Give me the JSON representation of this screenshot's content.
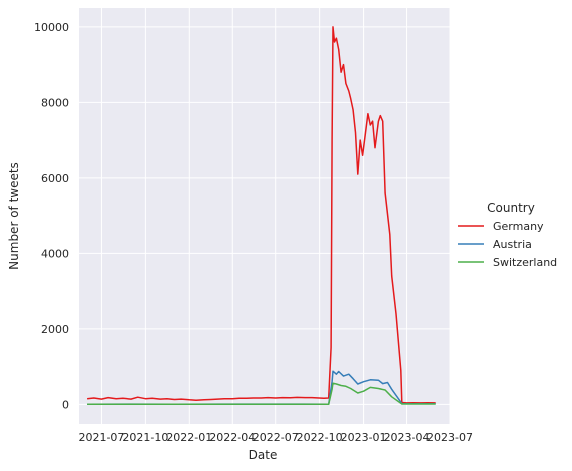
{
  "chart_data": {
    "type": "line",
    "xlabel": "Date",
    "ylabel": "Number of tweets",
    "x_ticks": [
      "2021-07",
      "2021-10",
      "2022-01",
      "2022-04",
      "2022-07",
      "2022-10",
      "2023-01",
      "2023-04",
      "2023-07"
    ],
    "y_ticks": [
      0,
      2000,
      4000,
      6000,
      8000,
      10000
    ],
    "xlim": [
      "2021-05-15",
      "2023-07-01"
    ],
    "ylim": [
      -520,
      10500
    ],
    "grid": true,
    "background": "#eaeaf2",
    "legend": {
      "title": "Country",
      "placement": "right"
    },
    "series": [
      {
        "name": "Germany",
        "color": "#e41a1c",
        "points": [
          [
            "2021-06-01",
            150
          ],
          [
            "2021-06-15",
            170
          ],
          [
            "2021-07-01",
            140
          ],
          [
            "2021-07-15",
            180
          ],
          [
            "2021-08-01",
            150
          ],
          [
            "2021-08-15",
            160
          ],
          [
            "2021-09-01",
            140
          ],
          [
            "2021-09-15",
            190
          ],
          [
            "2021-10-01",
            150
          ],
          [
            "2021-10-15",
            160
          ],
          [
            "2021-11-01",
            140
          ],
          [
            "2021-11-15",
            150
          ],
          [
            "2021-12-01",
            130
          ],
          [
            "2021-12-15",
            140
          ],
          [
            "2022-01-01",
            120
          ],
          [
            "2022-01-15",
            110
          ],
          [
            "2022-02-01",
            120
          ],
          [
            "2022-02-15",
            130
          ],
          [
            "2022-03-01",
            140
          ],
          [
            "2022-03-15",
            150
          ],
          [
            "2022-04-01",
            150
          ],
          [
            "2022-04-15",
            160
          ],
          [
            "2022-05-01",
            160
          ],
          [
            "2022-05-15",
            170
          ],
          [
            "2022-06-01",
            170
          ],
          [
            "2022-06-15",
            180
          ],
          [
            "2022-07-01",
            170
          ],
          [
            "2022-07-15",
            180
          ],
          [
            "2022-08-01",
            175
          ],
          [
            "2022-08-15",
            185
          ],
          [
            "2022-09-01",
            180
          ],
          [
            "2022-09-15",
            180
          ],
          [
            "2022-10-10",
            160
          ],
          [
            "2022-10-20",
            170
          ],
          [
            "2022-10-25",
            1500
          ],
          [
            "2022-10-27",
            7000
          ],
          [
            "2022-10-29",
            10000
          ],
          [
            "2022-11-01",
            9600
          ],
          [
            "2022-11-05",
            9700
          ],
          [
            "2022-11-10",
            9400
          ],
          [
            "2022-11-15",
            8800
          ],
          [
            "2022-11-20",
            9000
          ],
          [
            "2022-11-25",
            8500
          ],
          [
            "2022-12-01",
            8300
          ],
          [
            "2022-12-05",
            8100
          ],
          [
            "2022-12-10",
            7800
          ],
          [
            "2022-12-15",
            7200
          ],
          [
            "2022-12-20",
            6100
          ],
          [
            "2022-12-25",
            7000
          ],
          [
            "2022-12-30",
            6600
          ],
          [
            "2023-01-05",
            7200
          ],
          [
            "2023-01-10",
            7700
          ],
          [
            "2023-01-15",
            7400
          ],
          [
            "2023-01-20",
            7500
          ],
          [
            "2023-01-25",
            6800
          ],
          [
            "2023-02-01",
            7500
          ],
          [
            "2023-02-05",
            7650
          ],
          [
            "2023-02-10",
            7500
          ],
          [
            "2023-02-15",
            5600
          ],
          [
            "2023-02-25",
            4500
          ],
          [
            "2023-03-01",
            3400
          ],
          [
            "2023-03-10",
            2400
          ],
          [
            "2023-03-20",
            900
          ],
          [
            "2023-03-22",
            50
          ],
          [
            "2023-04-01",
            40
          ],
          [
            "2023-04-15",
            45
          ],
          [
            "2023-05-01",
            40
          ],
          [
            "2023-05-15",
            45
          ],
          [
            "2023-06-01",
            40
          ]
        ]
      },
      {
        "name": "Austria",
        "color": "#377eb8",
        "points": [
          [
            "2021-06-01",
            5
          ],
          [
            "2021-09-01",
            8
          ],
          [
            "2021-12-01",
            5
          ],
          [
            "2022-03-01",
            6
          ],
          [
            "2022-06-01",
            7
          ],
          [
            "2022-09-01",
            6
          ],
          [
            "2022-10-20",
            5
          ],
          [
            "2022-10-27",
            600
          ],
          [
            "2022-10-29",
            880
          ],
          [
            "2022-11-05",
            800
          ],
          [
            "2022-11-10",
            870
          ],
          [
            "2022-11-20",
            750
          ],
          [
            "2022-12-01",
            800
          ],
          [
            "2022-12-10",
            680
          ],
          [
            "2022-12-20",
            540
          ],
          [
            "2023-01-01",
            600
          ],
          [
            "2023-01-15",
            650
          ],
          [
            "2023-02-01",
            640
          ],
          [
            "2023-02-10",
            550
          ],
          [
            "2023-02-20",
            580
          ],
          [
            "2023-03-01",
            400
          ],
          [
            "2023-03-22",
            20
          ],
          [
            "2023-04-15",
            15
          ],
          [
            "2023-06-01",
            15
          ]
        ]
      },
      {
        "name": "Switzerland",
        "color": "#4daf4a",
        "points": [
          [
            "2021-06-01",
            3
          ],
          [
            "2021-09-01",
            4
          ],
          [
            "2021-12-01",
            3
          ],
          [
            "2022-03-01",
            4
          ],
          [
            "2022-06-01",
            4
          ],
          [
            "2022-09-01",
            3
          ],
          [
            "2022-10-20",
            3
          ],
          [
            "2022-10-27",
            400
          ],
          [
            "2022-10-29",
            560
          ],
          [
            "2022-11-05",
            540
          ],
          [
            "2022-11-15",
            500
          ],
          [
            "2022-11-25",
            480
          ],
          [
            "2022-12-05",
            420
          ],
          [
            "2022-12-20",
            300
          ],
          [
            "2023-01-01",
            350
          ],
          [
            "2023-01-15",
            450
          ],
          [
            "2023-02-01",
            420
          ],
          [
            "2023-02-15",
            380
          ],
          [
            "2023-03-01",
            200
          ],
          [
            "2023-03-22",
            10
          ],
          [
            "2023-04-15",
            10
          ],
          [
            "2023-06-01",
            10
          ]
        ]
      }
    ]
  }
}
